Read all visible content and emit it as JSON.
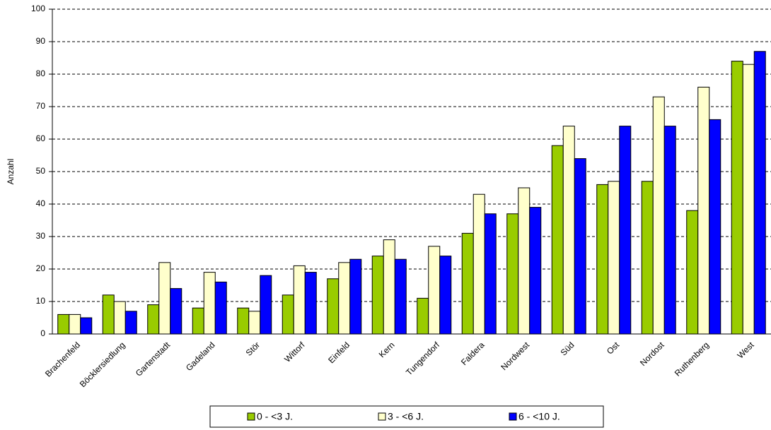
{
  "chart_data": {
    "type": "bar",
    "y_label": "Anzahl",
    "categories": [
      "Brachenfeld",
      "Böcklersiedlung",
      "Gartenstadt",
      "Gadeland",
      "Stör",
      "Wittorf",
      "Einfeld",
      "Kern",
      "Tungendorf",
      "Faldera",
      "Nordwest",
      "Süd",
      "Ost",
      "Nordost",
      "Ruthenberg",
      "West"
    ],
    "series": [
      {
        "name": "0 - <3 J.",
        "color": "#99cc00",
        "values": [
          6,
          12,
          9,
          8,
          8,
          12,
          17,
          24,
          11,
          31,
          37,
          58,
          46,
          47,
          38,
          84
        ]
      },
      {
        "name": "3 - <6 J.",
        "color": "#ffffcc",
        "values": [
          6,
          10,
          22,
          19,
          7,
          21,
          22,
          29,
          27,
          43,
          45,
          64,
          47,
          73,
          76,
          83
        ]
      },
      {
        "name": "6 - <10 J.",
        "color": "#0000ff",
        "values": [
          5,
          7,
          14,
          16,
          18,
          19,
          23,
          23,
          24,
          37,
          39,
          54,
          64,
          64,
          66,
          87
        ]
      }
    ],
    "ylim": [
      0,
      100
    ],
    "yticks": [
      0,
      10,
      20,
      30,
      40,
      50,
      60,
      70,
      80,
      90,
      100
    ],
    "grid": true,
    "legend": "bottom"
  }
}
